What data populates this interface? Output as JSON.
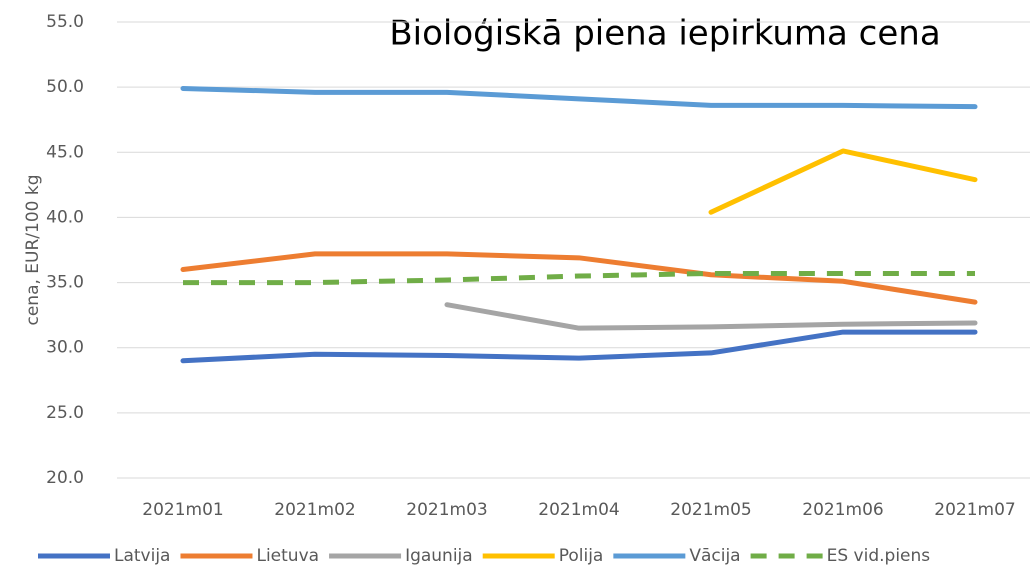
{
  "chart_data": {
    "type": "line",
    "title": "Bioloģiskā piena iepirkuma cena",
    "y_label": "cena, EUR/100 kg",
    "categories": [
      "2021m01",
      "2021m02",
      "2021m03",
      "2021m04",
      "2021m05",
      "2021m06",
      "2021m07"
    ],
    "series": [
      {
        "name": "Latvija",
        "color": "#4472c4",
        "values": [
          29.0,
          29.5,
          29.4,
          29.2,
          29.6,
          31.2,
          31.2
        ]
      },
      {
        "name": "Lietuva",
        "color": "#ed7d31",
        "values": [
          36.0,
          37.2,
          37.2,
          36.9,
          35.6,
          35.1,
          33.5
        ]
      },
      {
        "name": "Igaunija",
        "color": "#a5a5a5",
        "values": [
          null,
          null,
          33.3,
          31.5,
          31.6,
          31.8,
          31.9
        ]
      },
      {
        "name": "Polija",
        "color": "#ffc000",
        "values": [
          null,
          null,
          null,
          null,
          40.4,
          45.1,
          42.9
        ]
      },
      {
        "name": "Vācija",
        "color": "#5b9bd5",
        "values": [
          49.9,
          49.6,
          49.6,
          49.1,
          48.6,
          48.6,
          48.5
        ]
      },
      {
        "name": "ES vid.piens",
        "color": "#70ad47",
        "dashed": true,
        "values": [
          35.0,
          35.0,
          35.2,
          35.5,
          35.7,
          35.7,
          35.7
        ]
      }
    ],
    "ylim": [
      20,
      55
    ],
    "yticks": [
      {
        "value": 20,
        "label": "20.0"
      },
      {
        "value": 25,
        "label": "25.0"
      },
      {
        "value": 30,
        "label": "30.0"
      },
      {
        "value": 35,
        "label": "35.0"
      },
      {
        "value": 40,
        "label": "40.0"
      },
      {
        "value": 45,
        "label": "45.0"
      },
      {
        "value": 50,
        "label": "50.0"
      },
      {
        "value": 55,
        "label": "55.0"
      }
    ],
    "grid": true,
    "legend": "bottom"
  }
}
